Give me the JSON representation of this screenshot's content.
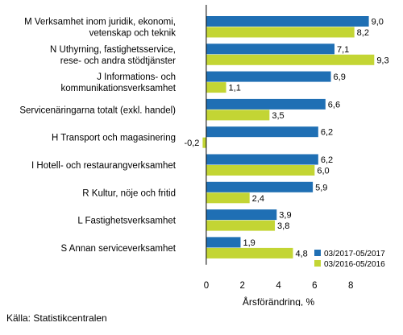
{
  "source": "Källa: Statistikcentralen",
  "chart_data": {
    "type": "bar",
    "orientation": "horizontal",
    "categories": [
      [
        "M Verksamhet inom juridik, ekonomi,",
        "vetenskap och teknik"
      ],
      [
        "N Uthyrning, fastighetsservice,",
        "rese- och andra stödtjänster"
      ],
      [
        "J Informations- och",
        "kommunikationsverksamhet"
      ],
      [
        "Servicenäringarna totalt (exkl. handel)"
      ],
      [
        "H Transport och magasinering"
      ],
      [
        "I Hotell- och restaurangverksamhet"
      ],
      [
        "R Kultur, nöje och fritid"
      ],
      [
        "L Fastighetsverksamhet"
      ],
      [
        "S Annan serviceverksamhet"
      ]
    ],
    "series": [
      {
        "name": "03/2017-05/2017",
        "color": "#1f6fb4",
        "values": [
          9.0,
          7.1,
          6.9,
          6.6,
          6.2,
          6.2,
          5.9,
          3.9,
          1.9
        ],
        "labels": [
          "9,0",
          "7,1",
          "6,9",
          "6,6",
          "6,2",
          "6,2",
          "5,9",
          "3,9",
          "1,9"
        ]
      },
      {
        "name": "03/2016-05/2016",
        "color": "#c3d534",
        "values": [
          8.2,
          9.3,
          1.1,
          3.5,
          -0.2,
          6.0,
          2.4,
          3.8,
          4.8
        ],
        "labels": [
          "8,2",
          "9,3",
          "1,1",
          "3,5",
          "-0,2",
          "6,0",
          "2,4",
          "3,8",
          "4,8"
        ]
      }
    ],
    "xlim": [
      -1.2,
      10
    ],
    "xticks": [
      0,
      2,
      4,
      6,
      8
    ],
    "xlabel": "Årsförändring, %",
    "legend_position": "bottom-right",
    "grid": false
  }
}
